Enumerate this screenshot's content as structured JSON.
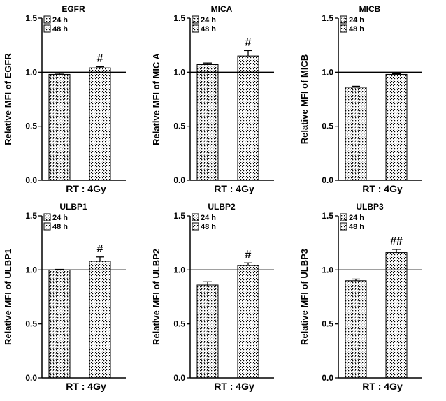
{
  "chart_data": [
    {
      "type": "bar",
      "title": "EGFR",
      "ylabel": "Relative MFI of EGFR",
      "xlabel": "RT : 4Gy",
      "ylim": [
        0,
        1.5
      ],
      "yticks": [
        "0.0",
        "0.5",
        "1.0",
        "1.5"
      ],
      "reference_line": 1.0,
      "legend": [
        "24 h",
        "48 h"
      ],
      "categories": [
        "24 h",
        "48 h"
      ],
      "values": [
        0.98,
        1.04
      ],
      "errors": [
        0.01,
        0.01
      ],
      "significance": [
        "",
        "#"
      ]
    },
    {
      "type": "bar",
      "title": "MICA",
      "ylabel": "Relative MFI of MIC A",
      "xlabel": "RT : 4Gy",
      "ylim": [
        0,
        1.5
      ],
      "yticks": [
        "0.0",
        "0.5",
        "1.0",
        "1.5"
      ],
      "reference_line": 1.0,
      "legend": [
        "24 h",
        "48 h"
      ],
      "categories": [
        "24 h",
        "48 h"
      ],
      "values": [
        1.07,
        1.15
      ],
      "errors": [
        0.015,
        0.05
      ],
      "significance": [
        "",
        "#"
      ]
    },
    {
      "type": "bar",
      "title": "MICB",
      "ylabel": "Relative MFI of MICB",
      "xlabel": "RT : 4Gy",
      "ylim": [
        0,
        1.5
      ],
      "yticks": [
        "0.0",
        "0.5",
        "1.0",
        "1.5"
      ],
      "reference_line": 1.0,
      "legend": [
        "24 h",
        "48 h"
      ],
      "categories": [
        "24 h",
        "48 h"
      ],
      "values": [
        0.86,
        0.98
      ],
      "errors": [
        0.01,
        0.005
      ],
      "significance": [
        "",
        ""
      ]
    },
    {
      "type": "bar",
      "title": "ULBP1",
      "ylabel": "Relative MFI of ULBP1",
      "xlabel": "RT : 4Gy",
      "ylim": [
        0,
        1.5
      ],
      "yticks": [
        "0.0",
        "0.5",
        "1.0",
        "1.5"
      ],
      "reference_line": 1.0,
      "legend": [
        "24 h",
        "48 h"
      ],
      "categories": [
        "24 h",
        "48 h"
      ],
      "values": [
        1.0,
        1.08
      ],
      "errors": [
        0.005,
        0.04
      ],
      "significance": [
        "",
        "#"
      ]
    },
    {
      "type": "bar",
      "title": "ULBP2",
      "ylabel": "Relative MFI of ULBP2",
      "xlabel": "RT : 4Gy",
      "ylim": [
        0,
        1.5
      ],
      "yticks": [
        "0.0",
        "0.5",
        "1.0",
        "1.5"
      ],
      "reference_line": 1.0,
      "legend": [
        "24 h",
        "48 h"
      ],
      "categories": [
        "24 h",
        "48 h"
      ],
      "values": [
        0.86,
        1.04
      ],
      "errors": [
        0.03,
        0.025
      ],
      "significance": [
        "",
        "#"
      ]
    },
    {
      "type": "bar",
      "title": "ULBP3",
      "ylabel": "Relative MFI of ULBP3",
      "xlabel": "RT : 4Gy",
      "ylim": [
        0,
        1.5
      ],
      "yticks": [
        "0.0",
        "0.5",
        "1.0",
        "1.5"
      ],
      "reference_line": 1.0,
      "legend": [
        "24 h",
        "48 h"
      ],
      "categories": [
        "24 h",
        "48 h"
      ],
      "values": [
        0.9,
        1.16
      ],
      "errors": [
        0.015,
        0.03
      ],
      "significance": [
        "",
        "##"
      ]
    }
  ]
}
